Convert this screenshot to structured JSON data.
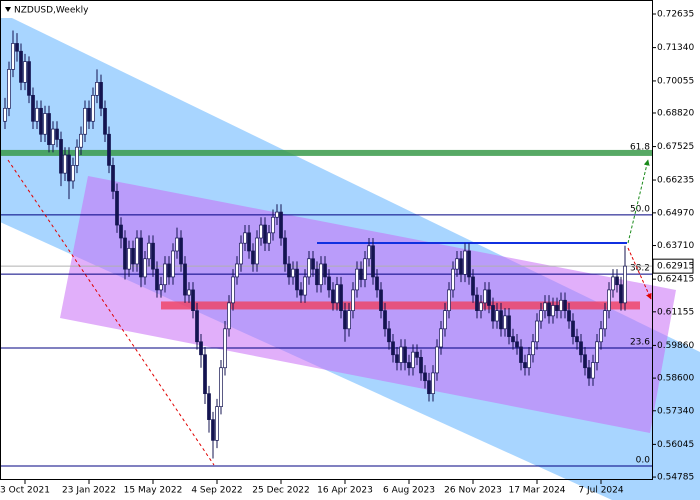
{
  "chart_data": {
    "type": "candlestick",
    "title": "NZDUSD,Weekly",
    "ylim": [
      0.54672,
      0.73175
    ],
    "yticks": [
      {
        "value": 0.72635,
        "label": "0.72635"
      },
      {
        "value": 0.7134,
        "label": "0.71340"
      },
      {
        "value": 0.70055,
        "label": "0.70055"
      },
      {
        "value": 0.6882,
        "label": "0.68820"
      },
      {
        "value": 0.67525,
        "label": "0.67525"
      },
      {
        "value": 0.66235,
        "label": "0.66235"
      },
      {
        "value": 0.6497,
        "label": "0.64970"
      },
      {
        "value": 0.6371,
        "label": "0.63710"
      },
      {
        "value": 0.62415,
        "label": "0.62415"
      },
      {
        "value": 0.61155,
        "label": "0.61155"
      },
      {
        "value": 0.5986,
        "label": "0.59860"
      },
      {
        "value": 0.586,
        "label": "0.58600"
      },
      {
        "value": 0.5734,
        "label": "0.57340"
      },
      {
        "value": 0.56045,
        "label": "0.56045"
      },
      {
        "value": 0.54785,
        "label": "0.54785"
      }
    ],
    "xticks": [
      {
        "value": 5,
        "label": "3 Oct 2021"
      },
      {
        "value": 21,
        "label": "23 Jan 2022"
      },
      {
        "value": 37,
        "label": "15 May 2022"
      },
      {
        "value": 53,
        "label": "4 Sep 2022"
      },
      {
        "value": 69,
        "label": "25 Dec 2022"
      },
      {
        "value": 85,
        "label": "16 Apr 2023"
      },
      {
        "value": 101,
        "label": "6 Aug 2023"
      },
      {
        "value": 117,
        "label": "26 Nov 2023"
      },
      {
        "value": 133,
        "label": "17 Mar 2024"
      },
      {
        "value": 149,
        "label": "7 Jul 2024"
      }
    ],
    "up_color": "#ffffff",
    "down_color": "#141450",
    "candle_stroke": "#141450",
    "last_price": 0.62915,
    "resistance": 0.6381,
    "support": 0.614,
    "levels": [
      {
        "label": "61.8",
        "value": 0.6728
      },
      {
        "label": "50.0",
        "value": 0.6489
      },
      {
        "label": "38.2",
        "value": 0.6261
      },
      {
        "label": "23.6",
        "value": 0.5976
      },
      {
        "label": "0.0",
        "value": 0.5521
      }
    ],
    "ohlc": [
      [
        0.685,
        0.694,
        0.682,
        0.69
      ],
      [
        0.69,
        0.708,
        0.687,
        0.705
      ],
      [
        0.705,
        0.72,
        0.702,
        0.715
      ],
      [
        0.715,
        0.719,
        0.708,
        0.712
      ],
      [
        0.712,
        0.715,
        0.697,
        0.7
      ],
      [
        0.7,
        0.711,
        0.697,
        0.708
      ],
      [
        0.708,
        0.71,
        0.692,
        0.695
      ],
      [
        0.695,
        0.698,
        0.682,
        0.685
      ],
      [
        0.685,
        0.693,
        0.682,
        0.69
      ],
      [
        0.69,
        0.693,
        0.677,
        0.68
      ],
      [
        0.68,
        0.691,
        0.677,
        0.688
      ],
      [
        0.688,
        0.691,
        0.673,
        0.676
      ],
      [
        0.676,
        0.685,
        0.673,
        0.682
      ],
      [
        0.682,
        0.685,
        0.675,
        0.678
      ],
      [
        0.678,
        0.681,
        0.66,
        0.665
      ],
      [
        0.665,
        0.675,
        0.662,
        0.672
      ],
      [
        0.672,
        0.675,
        0.655,
        0.662
      ],
      [
        0.662,
        0.671,
        0.659,
        0.668
      ],
      [
        0.668,
        0.678,
        0.665,
        0.675
      ],
      [
        0.675,
        0.683,
        0.672,
        0.68
      ],
      [
        0.68,
        0.693,
        0.677,
        0.69
      ],
      [
        0.69,
        0.693,
        0.682,
        0.685
      ],
      [
        0.685,
        0.698,
        0.682,
        0.695
      ],
      [
        0.695,
        0.705,
        0.692,
        0.7
      ],
      [
        0.7,
        0.703,
        0.687,
        0.69
      ],
      [
        0.69,
        0.693,
        0.677,
        0.68
      ],
      [
        0.68,
        0.683,
        0.665,
        0.668
      ],
      [
        0.668,
        0.671,
        0.655,
        0.658
      ],
      [
        0.658,
        0.661,
        0.642,
        0.645
      ],
      [
        0.645,
        0.648,
        0.636,
        0.64
      ],
      [
        0.64,
        0.643,
        0.624,
        0.628
      ],
      [
        0.628,
        0.639,
        0.625,
        0.636
      ],
      [
        0.636,
        0.639,
        0.627,
        0.63
      ],
      [
        0.63,
        0.643,
        0.627,
        0.64
      ],
      [
        0.64,
        0.643,
        0.621,
        0.625
      ],
      [
        0.625,
        0.635,
        0.622,
        0.632
      ],
      [
        0.632,
        0.641,
        0.629,
        0.638
      ],
      [
        0.638,
        0.641,
        0.625,
        0.628
      ],
      [
        0.628,
        0.631,
        0.617,
        0.62
      ],
      [
        0.62,
        0.625,
        0.617,
        0.622
      ],
      [
        0.622,
        0.633,
        0.619,
        0.63
      ],
      [
        0.63,
        0.633,
        0.622,
        0.625
      ],
      [
        0.625,
        0.638,
        0.622,
        0.635
      ],
      [
        0.635,
        0.644,
        0.632,
        0.64
      ],
      [
        0.64,
        0.643,
        0.627,
        0.63
      ],
      [
        0.63,
        0.633,
        0.615,
        0.618
      ],
      [
        0.618,
        0.623,
        0.615,
        0.62
      ],
      [
        0.62,
        0.623,
        0.609,
        0.612
      ],
      [
        0.612,
        0.615,
        0.597,
        0.6
      ],
      [
        0.6,
        0.603,
        0.59,
        0.595
      ],
      [
        0.595,
        0.598,
        0.576,
        0.58
      ],
      [
        0.58,
        0.583,
        0.565,
        0.57
      ],
      [
        0.57,
        0.573,
        0.555,
        0.562
      ],
      [
        0.562,
        0.578,
        0.559,
        0.575
      ],
      [
        0.575,
        0.593,
        0.572,
        0.59
      ],
      [
        0.59,
        0.608,
        0.587,
        0.605
      ],
      [
        0.605,
        0.618,
        0.602,
        0.615
      ],
      [
        0.615,
        0.628,
        0.612,
        0.625
      ],
      [
        0.625,
        0.633,
        0.622,
        0.63
      ],
      [
        0.63,
        0.641,
        0.627,
        0.638
      ],
      [
        0.638,
        0.645,
        0.635,
        0.642
      ],
      [
        0.642,
        0.645,
        0.632,
        0.635
      ],
      [
        0.635,
        0.638,
        0.627,
        0.63
      ],
      [
        0.63,
        0.643,
        0.627,
        0.64
      ],
      [
        0.64,
        0.648,
        0.637,
        0.645
      ],
      [
        0.645,
        0.648,
        0.635,
        0.638
      ],
      [
        0.638,
        0.645,
        0.635,
        0.642
      ],
      [
        0.642,
        0.651,
        0.639,
        0.648
      ],
      [
        0.648,
        0.653,
        0.645,
        0.65
      ],
      [
        0.65,
        0.653,
        0.637,
        0.64
      ],
      [
        0.64,
        0.643,
        0.627,
        0.63
      ],
      [
        0.63,
        0.633,
        0.622,
        0.625
      ],
      [
        0.625,
        0.631,
        0.622,
        0.628
      ],
      [
        0.628,
        0.631,
        0.617,
        0.62
      ],
      [
        0.62,
        0.623,
        0.615,
        0.618
      ],
      [
        0.618,
        0.628,
        0.615,
        0.625
      ],
      [
        0.625,
        0.635,
        0.622,
        0.632
      ],
      [
        0.632,
        0.635,
        0.625,
        0.628
      ],
      [
        0.628,
        0.631,
        0.619,
        0.622
      ],
      [
        0.622,
        0.633,
        0.619,
        0.63
      ],
      [
        0.63,
        0.633,
        0.622,
        0.625
      ],
      [
        0.625,
        0.628,
        0.617,
        0.62
      ],
      [
        0.62,
        0.623,
        0.612,
        0.615
      ],
      [
        0.615,
        0.625,
        0.612,
        0.622
      ],
      [
        0.622,
        0.625,
        0.609,
        0.612
      ],
      [
        0.612,
        0.615,
        0.6,
        0.605
      ],
      [
        0.605,
        0.615,
        0.602,
        0.612
      ],
      [
        0.612,
        0.623,
        0.609,
        0.62
      ],
      [
        0.62,
        0.631,
        0.617,
        0.628
      ],
      [
        0.628,
        0.631,
        0.621,
        0.624
      ],
      [
        0.624,
        0.635,
        0.621,
        0.632
      ],
      [
        0.632,
        0.64,
        0.629,
        0.637
      ],
      [
        0.637,
        0.64,
        0.622,
        0.625
      ],
      [
        0.625,
        0.628,
        0.617,
        0.62
      ],
      [
        0.62,
        0.623,
        0.609,
        0.612
      ],
      [
        0.612,
        0.615,
        0.602,
        0.605
      ],
      [
        0.605,
        0.608,
        0.597,
        0.6
      ],
      [
        0.6,
        0.603,
        0.592,
        0.595
      ],
      [
        0.595,
        0.598,
        0.589,
        0.592
      ],
      [
        0.592,
        0.601,
        0.589,
        0.598
      ],
      [
        0.598,
        0.601,
        0.589,
        0.592
      ],
      [
        0.592,
        0.595,
        0.587,
        0.59
      ],
      [
        0.59,
        0.599,
        0.587,
        0.596
      ],
      [
        0.596,
        0.599,
        0.591,
        0.594
      ],
      [
        0.594,
        0.597,
        0.585,
        0.588
      ],
      [
        0.588,
        0.591,
        0.582,
        0.585
      ],
      [
        0.585,
        0.588,
        0.577,
        0.58
      ],
      [
        0.58,
        0.591,
        0.577,
        0.588
      ],
      [
        0.588,
        0.601,
        0.585,
        0.598
      ],
      [
        0.598,
        0.608,
        0.595,
        0.605
      ],
      [
        0.605,
        0.615,
        0.602,
        0.612
      ],
      [
        0.612,
        0.623,
        0.609,
        0.62
      ],
      [
        0.62,
        0.631,
        0.617,
        0.628
      ],
      [
        0.628,
        0.635,
        0.625,
        0.632
      ],
      [
        0.632,
        0.635,
        0.623,
        0.626
      ],
      [
        0.626,
        0.638,
        0.623,
        0.635
      ],
      [
        0.635,
        0.638,
        0.622,
        0.625
      ],
      [
        0.625,
        0.628,
        0.615,
        0.618
      ],
      [
        0.618,
        0.621,
        0.609,
        0.612
      ],
      [
        0.612,
        0.618,
        0.609,
        0.615
      ],
      [
        0.615,
        0.623,
        0.612,
        0.62
      ],
      [
        0.62,
        0.623,
        0.611,
        0.614
      ],
      [
        0.614,
        0.617,
        0.605,
        0.608
      ],
      [
        0.608,
        0.615,
        0.605,
        0.612
      ],
      [
        0.612,
        0.615,
        0.602,
        0.605
      ],
      [
        0.605,
        0.613,
        0.602,
        0.61
      ],
      [
        0.61,
        0.613,
        0.599,
        0.602
      ],
      [
        0.602,
        0.605,
        0.597,
        0.6
      ],
      [
        0.6,
        0.603,
        0.595,
        0.598
      ],
      [
        0.598,
        0.601,
        0.589,
        0.592
      ],
      [
        0.592,
        0.595,
        0.587,
        0.59
      ],
      [
        0.59,
        0.598,
        0.587,
        0.595
      ],
      [
        0.595,
        0.603,
        0.592,
        0.6
      ],
      [
        0.6,
        0.611,
        0.597,
        0.608
      ],
      [
        0.608,
        0.615,
        0.605,
        0.612
      ],
      [
        0.612,
        0.618,
        0.609,
        0.615
      ],
      [
        0.615,
        0.618,
        0.607,
        0.61
      ],
      [
        0.61,
        0.617,
        0.607,
        0.614
      ],
      [
        0.614,
        0.617,
        0.609,
        0.612
      ],
      [
        0.612,
        0.619,
        0.609,
        0.616
      ],
      [
        0.616,
        0.619,
        0.609,
        0.612
      ],
      [
        0.612,
        0.615,
        0.605,
        0.608
      ],
      [
        0.608,
        0.611,
        0.599,
        0.602
      ],
      [
        0.602,
        0.605,
        0.597,
        0.6
      ],
      [
        0.6,
        0.603,
        0.592,
        0.595
      ],
      [
        0.595,
        0.598,
        0.587,
        0.59
      ],
      [
        0.59,
        0.593,
        0.583,
        0.586
      ],
      [
        0.586,
        0.595,
        0.583,
        0.592
      ],
      [
        0.592,
        0.603,
        0.589,
        0.6
      ],
      [
        0.6,
        0.608,
        0.597,
        0.605
      ],
      [
        0.605,
        0.615,
        0.602,
        0.612
      ],
      [
        0.612,
        0.623,
        0.609,
        0.62
      ],
      [
        0.62,
        0.628,
        0.617,
        0.625
      ],
      [
        0.625,
        0.628,
        0.619,
        0.622
      ],
      [
        0.622,
        0.625,
        0.612,
        0.615
      ],
      [
        0.615,
        0.637,
        0.612,
        0.62915
      ]
    ]
  }
}
